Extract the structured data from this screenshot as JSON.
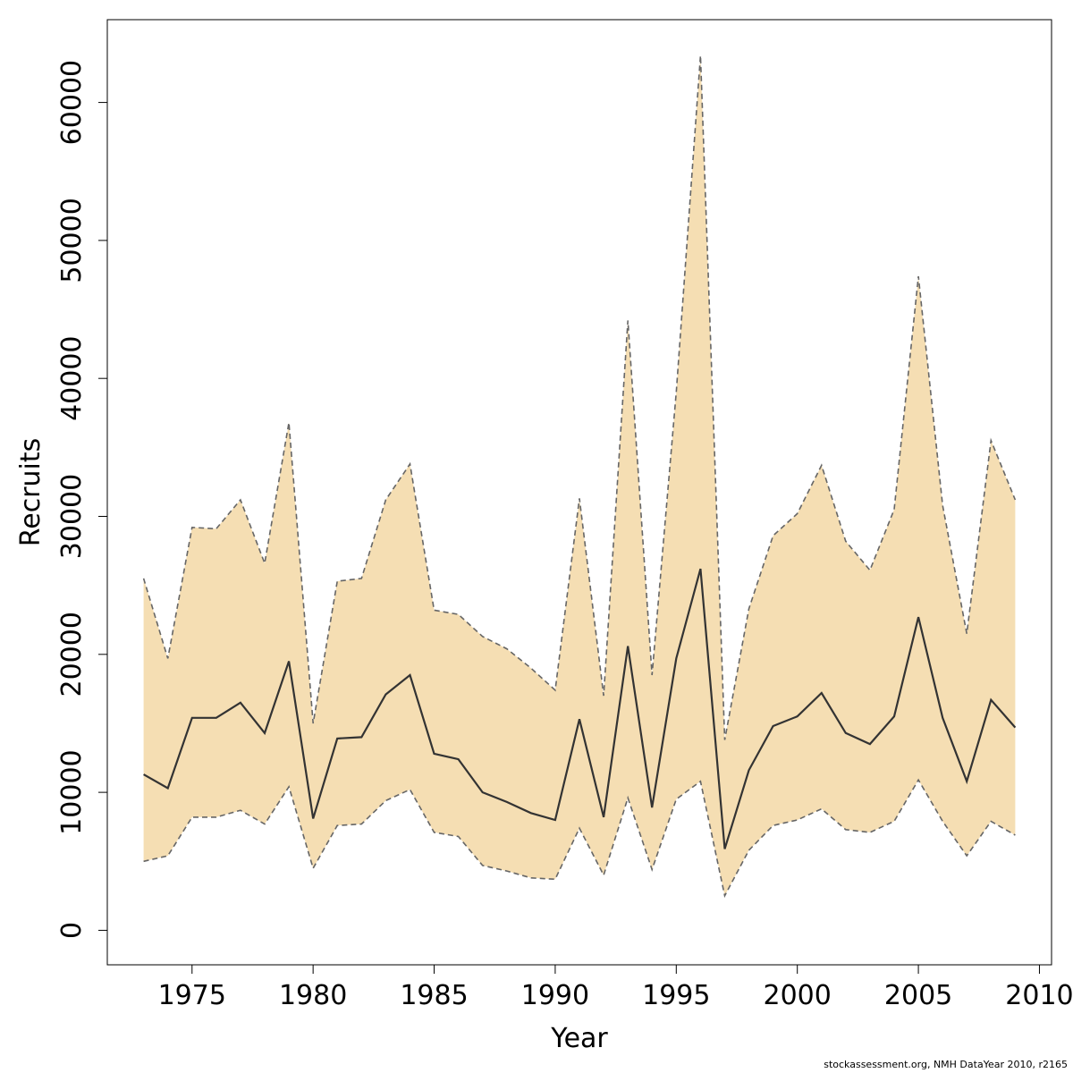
{
  "chart_data": {
    "type": "area",
    "xlabel": "Year",
    "ylabel": "Recruits",
    "xlim": [
      1971.5,
      2010.5
    ],
    "ylim": [
      -2500,
      66000
    ],
    "x_ticks": [
      1975,
      1980,
      1985,
      1990,
      1995,
      2000,
      2005,
      2010
    ],
    "y_ticks": [
      0,
      10000,
      20000,
      30000,
      40000,
      50000,
      60000
    ],
    "grid": false,
    "legend": "none",
    "colors": {
      "band": "#f5deb3",
      "median": "#333333",
      "bounds": "#666666"
    },
    "x": [
      1973,
      1974,
      1975,
      1976,
      1977,
      1978,
      1979,
      1980,
      1981,
      1982,
      1983,
      1984,
      1985,
      1986,
      1987,
      1988,
      1989,
      1990,
      1991,
      1992,
      1993,
      1994,
      1995,
      1996,
      1997,
      1998,
      1999,
      2000,
      2001,
      2002,
      2003,
      2004,
      2005,
      2006,
      2007,
      2008,
      2009
    ],
    "series": [
      {
        "role": "upper",
        "values": [
          25500,
          19700,
          29200,
          29100,
          31200,
          26600,
          36800,
          15000,
          25300,
          25500,
          31200,
          33800,
          23200,
          22900,
          21300,
          20400,
          19000,
          17400,
          31300,
          17000,
          44200,
          18500,
          39000,
          63400,
          13800,
          23300,
          28600,
          30200,
          33700,
          28200,
          26100,
          30500,
          47400,
          30800,
          21500,
          35500,
          31200
        ]
      },
      {
        "role": "median",
        "values": [
          11300,
          10300,
          15400,
          15400,
          16500,
          14300,
          19500,
          8100,
          13900,
          14000,
          17100,
          18500,
          12800,
          12400,
          10000,
          9300,
          8500,
          8000,
          15300,
          8200,
          20600,
          8900,
          19700,
          26200,
          5900,
          11600,
          14800,
          15500,
          17200,
          14300,
          13500,
          15500,
          22700,
          15400,
          10800,
          16700,
          14700
        ]
      },
      {
        "role": "lower",
        "values": [
          5000,
          5400,
          8200,
          8200,
          8700,
          7700,
          10400,
          4500,
          7600,
          7700,
          9400,
          10200,
          7100,
          6800,
          4700,
          4300,
          3800,
          3700,
          7400,
          4000,
          9600,
          4400,
          9500,
          10800,
          2500,
          5800,
          7600,
          8000,
          8800,
          7300,
          7100,
          7900,
          10900,
          7900,
          5400,
          7900,
          6900
        ]
      }
    ]
  },
  "footer": {
    "text": "stockassessment.org, NMH  DataYear  2010, r2165"
  }
}
